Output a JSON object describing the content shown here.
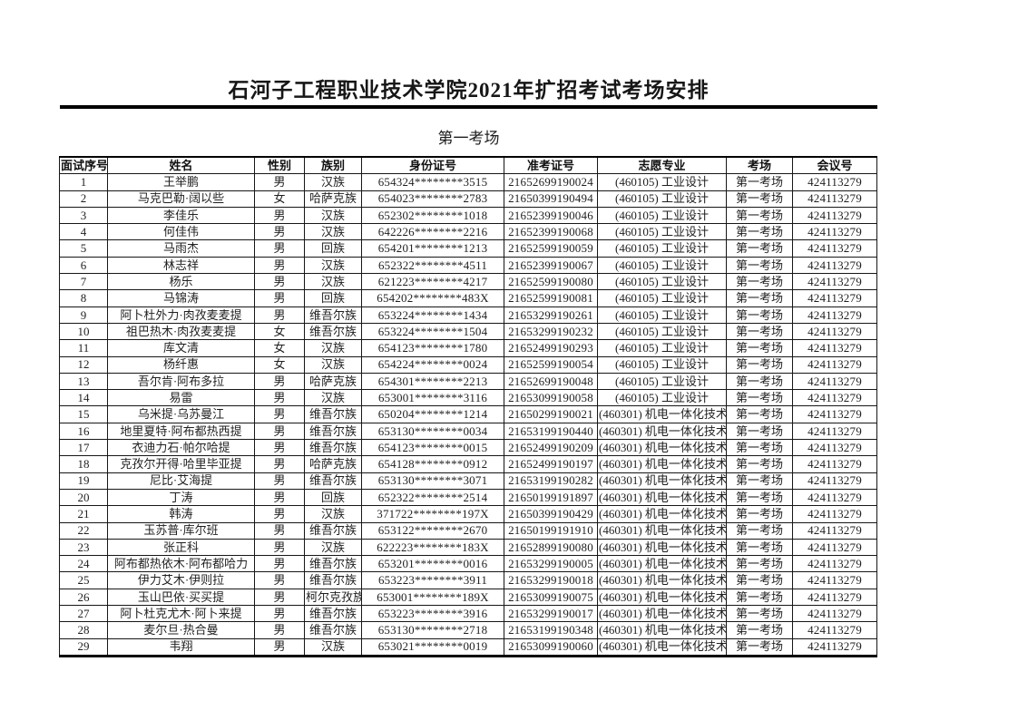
{
  "page": {
    "title": "石河子工程职业技术学院2021年扩招考试考场安排",
    "section_title": "第一考场"
  },
  "table": {
    "headers": [
      "面试序号",
      "姓名",
      "性别",
      "族别",
      "身份证号",
      "准考证号",
      "志愿专业",
      "考场",
      "会议号"
    ],
    "rows": [
      [
        "1",
        "王举鹏",
        "男",
        "汉族",
        "654324********3515",
        "21652699190024",
        "(460105) 工业设计",
        "第一考场",
        "424113279"
      ],
      [
        "2",
        "马克巴勒·阔以些",
        "女",
        "哈萨克族",
        "654023********2783",
        "21650399190494",
        "(460105) 工业设计",
        "第一考场",
        "424113279"
      ],
      [
        "3",
        "李佳乐",
        "男",
        "汉族",
        "652302********1018",
        "21652399190046",
        "(460105) 工业设计",
        "第一考场",
        "424113279"
      ],
      [
        "4",
        "何佳伟",
        "男",
        "汉族",
        "642226********2216",
        "21652399190068",
        "(460105) 工业设计",
        "第一考场",
        "424113279"
      ],
      [
        "5",
        "马雨杰",
        "男",
        "回族",
        "654201********1213",
        "21652599190059",
        "(460105) 工业设计",
        "第一考场",
        "424113279"
      ],
      [
        "6",
        "林志祥",
        "男",
        "汉族",
        "652322********4511",
        "21652399190067",
        "(460105) 工业设计",
        "第一考场",
        "424113279"
      ],
      [
        "7",
        "杨乐",
        "男",
        "汉族",
        "621223********4217",
        "21652599190080",
        "(460105) 工业设计",
        "第一考场",
        "424113279"
      ],
      [
        "8",
        "马锦涛",
        "男",
        "回族",
        "654202********483X",
        "21652599190081",
        "(460105) 工业设计",
        "第一考场",
        "424113279"
      ],
      [
        "9",
        "阿卜杜外力·肉孜麦麦提",
        "男",
        "维吾尔族",
        "653224********1434",
        "21653299190261",
        "(460105) 工业设计",
        "第一考场",
        "424113279"
      ],
      [
        "10",
        "祖巴热木·肉孜麦麦提",
        "女",
        "维吾尔族",
        "653224********1504",
        "21653299190232",
        "(460105) 工业设计",
        "第一考场",
        "424113279"
      ],
      [
        "11",
        "库文清",
        "女",
        "汉族",
        "654123********1780",
        "21652499190293",
        "(460105) 工业设计",
        "第一考场",
        "424113279"
      ],
      [
        "12",
        "杨纤惠",
        "女",
        "汉族",
        "654224********0024",
        "21652599190054",
        "(460105) 工业设计",
        "第一考场",
        "424113279"
      ],
      [
        "13",
        "吾尔肯·阿布多拉",
        "男",
        "哈萨克族",
        "654301********2213",
        "21652699190048",
        "(460105) 工业设计",
        "第一考场",
        "424113279"
      ],
      [
        "14",
        "易雷",
        "男",
        "汉族",
        "653001********3116",
        "21653099190058",
        "(460105) 工业设计",
        "第一考场",
        "424113279"
      ],
      [
        "15",
        "乌米提·乌苏曼江",
        "男",
        "维吾尔族",
        "650204********1214",
        "21650299190021",
        "(460301) 机电一体化技术",
        "第一考场",
        "424113279"
      ],
      [
        "16",
        "地里夏特·阿布都热西提",
        "男",
        "维吾尔族",
        "653130********0034",
        "21653199190440",
        "(460301) 机电一体化技术",
        "第一考场",
        "424113279"
      ],
      [
        "17",
        "衣迪力石·帕尔哈提",
        "男",
        "维吾尔族",
        "654123********0015",
        "21652499190209",
        "(460301) 机电一体化技术",
        "第一考场",
        "424113279"
      ],
      [
        "18",
        "克孜尔开得·哈里毕亚提",
        "男",
        "哈萨克族",
        "654128********0912",
        "21652499190197",
        "(460301) 机电一体化技术",
        "第一考场",
        "424113279"
      ],
      [
        "19",
        "尼比·艾海提",
        "男",
        "维吾尔族",
        "653130********3071",
        "21653199190282",
        "(460301) 机电一体化技术",
        "第一考场",
        "424113279"
      ],
      [
        "20",
        "丁涛",
        "男",
        "回族",
        "652322********2514",
        "21650199191897",
        "(460301) 机电一体化技术",
        "第一考场",
        "424113279"
      ],
      [
        "21",
        "韩涛",
        "男",
        "汉族",
        "371722********197X",
        "21650399190429",
        "(460301) 机电一体化技术",
        "第一考场",
        "424113279"
      ],
      [
        "22",
        "玉苏普·库尔班",
        "男",
        "维吾尔族",
        "653122********2670",
        "21650199191910",
        "(460301) 机电一体化技术",
        "第一考场",
        "424113279"
      ],
      [
        "23",
        "张正科",
        "男",
        "汉族",
        "622223********183X",
        "21652899190080",
        "(460301) 机电一体化技术",
        "第一考场",
        "424113279"
      ],
      [
        "24",
        "阿布都热依木·阿布都哈力",
        "男",
        "维吾尔族",
        "653201********0016",
        "21653299190005",
        "(460301) 机电一体化技术",
        "第一考场",
        "424113279"
      ],
      [
        "25",
        "伊力艾木·伊则拉",
        "男",
        "维吾尔族",
        "653223********3911",
        "21653299190018",
        "(460301) 机电一体化技术",
        "第一考场",
        "424113279"
      ],
      [
        "26",
        "玉山巴依·买买提",
        "男",
        "柯尔克孜族",
        "653001********189X",
        "21653099190075",
        "(460301) 机电一体化技术",
        "第一考场",
        "424113279"
      ],
      [
        "27",
        "阿卜杜克尤木·阿卜来提",
        "男",
        "维吾尔族",
        "653223********3916",
        "21653299190017",
        "(460301) 机电一体化技术",
        "第一考场",
        "424113279"
      ],
      [
        "28",
        "麦尔旦·热合曼",
        "男",
        "维吾尔族",
        "653130********2718",
        "21653199190348",
        "(460301) 机电一体化技术",
        "第一考场",
        "424113279"
      ],
      [
        "29",
        "韦翔",
        "男",
        "汉族",
        "653021********0019",
        "21653099190060",
        "(460301) 机电一体化技术",
        "第一考场",
        "424113279"
      ]
    ]
  }
}
